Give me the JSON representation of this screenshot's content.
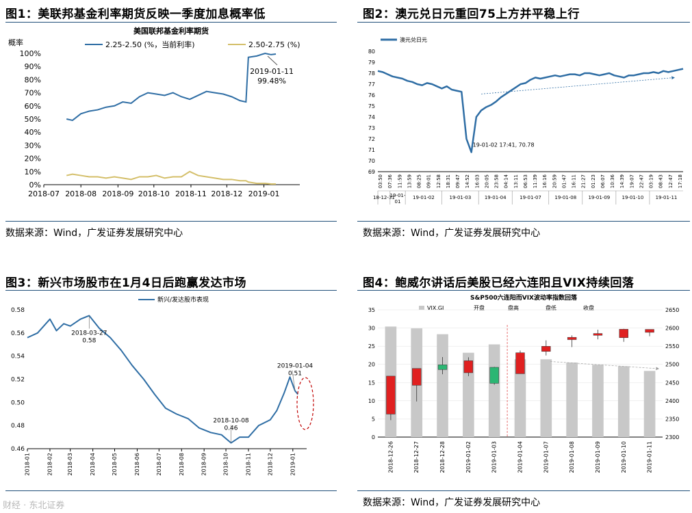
{
  "panels": {
    "p1": {
      "title": "图1：美联邦基金利率期货反映一季度加息概率低",
      "source": "数据来源：Wind，广发证券发展研究中心"
    },
    "p2": {
      "title": "图2：澳元兑日元重回75上方并平稳上行",
      "source": "数据来源：Wind，广发证券发展研究中心"
    },
    "p3": {
      "title": "图3：新兴市场股市在1月4日后跑赢发达市场",
      "source": ""
    },
    "p4": {
      "title": "图4：鲍威尔讲话后美股已经六连阳且VIX持续回落",
      "source": "数据来源：Wind，广发证券发展研究中心"
    }
  },
  "watermark": "财经 · 东北证券",
  "chart_data": [
    {
      "id": "chart1",
      "type": "line",
      "title": "美国联邦基金利率期货",
      "ylabel": "概率",
      "ylim": [
        0,
        100
      ],
      "yticks": [
        "0%",
        "10%",
        "20%",
        "30%",
        "40%",
        "50%",
        "60%",
        "70%",
        "80%",
        "90%",
        "100%"
      ],
      "xticks": [
        "2018-07",
        "2018-08",
        "2018-09",
        "2018-10",
        "2018-11",
        "2018-12",
        "2019-01"
      ],
      "legend_position": "top",
      "series": [
        {
          "name": "2.25-2.50 (%，当前利率)",
          "color": "#2e6da4",
          "x": [
            "2018-07-20",
            "2018-07-25",
            "2018-08-01",
            "2018-08-08",
            "2018-08-15",
            "2018-08-22",
            "2018-08-29",
            "2018-09-05",
            "2018-09-12",
            "2018-09-19",
            "2018-09-26",
            "2018-10-03",
            "2018-10-10",
            "2018-10-17",
            "2018-10-24",
            "2018-10-31",
            "2018-11-07",
            "2018-11-14",
            "2018-11-21",
            "2018-11-28",
            "2018-12-05",
            "2018-12-12",
            "2018-12-17",
            "2018-12-19",
            "2018-12-26",
            "2019-01-02",
            "2019-01-07",
            "2019-01-11"
          ],
          "values": [
            50,
            49,
            54,
            56,
            57,
            59,
            60,
            63,
            62,
            67,
            70,
            69,
            68,
            70,
            67,
            65,
            68,
            71,
            70,
            69,
            67,
            64,
            63,
            97,
            98,
            100,
            99,
            99.48
          ]
        },
        {
          "name": "2.50-2.75 (%)",
          "color": "#d4bf6a",
          "x": [
            "2018-07-20",
            "2018-07-25",
            "2018-08-01",
            "2018-08-08",
            "2018-08-15",
            "2018-08-22",
            "2018-08-29",
            "2018-09-05",
            "2018-09-12",
            "2018-09-19",
            "2018-09-26",
            "2018-10-03",
            "2018-10-10",
            "2018-10-17",
            "2018-10-24",
            "2018-10-31",
            "2018-11-07",
            "2018-11-14",
            "2018-11-21",
            "2018-11-28",
            "2018-12-05",
            "2018-12-12",
            "2018-12-17",
            "2018-12-19",
            "2018-12-26",
            "2019-01-02",
            "2019-01-07",
            "2019-01-11"
          ],
          "values": [
            7,
            8,
            7,
            6,
            6,
            5,
            6,
            5,
            4,
            6,
            6,
            7,
            5,
            6,
            6,
            10,
            7,
            6,
            5,
            4,
            4,
            3,
            3,
            2,
            1,
            1,
            0.5,
            0.5
          ]
        }
      ],
      "annotations": [
        {
          "label": "2019-01-11",
          "value": "99.48%",
          "x": "2019-01-11",
          "y": 99.48
        }
      ]
    },
    {
      "id": "chart2",
      "type": "line",
      "series": [
        {
          "name": "澳元兑日元",
          "color": "#2e6da4",
          "values": [
            78.2,
            78.1,
            77.9,
            77.7,
            77.6,
            77.5,
            77.3,
            77.2,
            77.0,
            76.9,
            77.1,
            77.0,
            76.8,
            76.6,
            76.8,
            76.5,
            76.4,
            76.3,
            72.0,
            70.78,
            74.0,
            74.6,
            74.9,
            75.1,
            75.4,
            75.8,
            76.1,
            76.4,
            76.7,
            77.0,
            77.1,
            77.4,
            77.6,
            77.5,
            77.6,
            77.7,
            77.8,
            77.7,
            77.8,
            77.9,
            77.9,
            77.8,
            78.0,
            78.0,
            77.9,
            77.8,
            77.9,
            78.0,
            77.8,
            77.7,
            77.6,
            77.8,
            77.8,
            77.9,
            78.0,
            78.0,
            78.1,
            78.0,
            78.2,
            78.1,
            78.2,
            78.3,
            78.4
          ]
        }
      ],
      "ylim": [
        69,
        80
      ],
      "yticks": [
        "69",
        "70",
        "71",
        "72",
        "73",
        "74",
        "75",
        "76",
        "77",
        "78",
        "79",
        "80"
      ],
      "date_groups": [
        "18-12-31",
        "19-01-01",
        "19-01-02",
        "19-01-03",
        "19-01-04",
        "19-01-07",
        "19-01-08",
        "19-01-09",
        "19-01-10",
        "19-01-11"
      ],
      "time_labels": [
        "03:50",
        "07:36",
        "11:59",
        "13:59",
        "08:25",
        "09:01",
        "12:58",
        "18:31",
        "09:47",
        "14:52",
        "16:03",
        "20:05",
        "23:58",
        "04:14",
        "13:11",
        "06:53",
        "11:39",
        "16:16",
        "20:59",
        "01:47",
        "16:11",
        "21:27",
        "01:23",
        "06:07",
        "10:36",
        "14:39",
        "19:07",
        "22:47",
        "03:19",
        "08:43",
        "12:47",
        "17:18"
      ],
      "annotations": [
        {
          "label": "19-01-02 17:41, 70.78",
          "y": 70.78
        }
      ],
      "trend_arrow": true,
      "legend_position": "top-left"
    },
    {
      "id": "chart3",
      "type": "line",
      "series": [
        {
          "name": "新兴/发达股市表现",
          "color": "#2e6da4",
          "x": [
            "2018-01-01",
            "2018-01-15",
            "2018-02-01",
            "2018-02-10",
            "2018-02-20",
            "2018-03-01",
            "2018-03-15",
            "2018-03-27",
            "2018-04-10",
            "2018-04-25",
            "2018-05-10",
            "2018-05-25",
            "2018-06-10",
            "2018-06-25",
            "2018-07-10",
            "2018-07-25",
            "2018-08-10",
            "2018-08-25",
            "2018-09-10",
            "2018-09-25",
            "2018-10-08",
            "2018-10-20",
            "2018-11-01",
            "2018-11-15",
            "2018-12-01",
            "2018-12-10",
            "2018-12-20",
            "2018-12-28",
            "2019-01-04",
            "2019-01-08"
          ],
          "values": [
            0.556,
            0.56,
            0.572,
            0.562,
            0.568,
            0.566,
            0.572,
            0.575,
            0.564,
            0.556,
            0.545,
            0.532,
            0.52,
            0.507,
            0.495,
            0.49,
            0.486,
            0.478,
            0.474,
            0.472,
            0.465,
            0.47,
            0.47,
            0.48,
            0.485,
            0.493,
            0.508,
            0.522,
            0.51,
            0.507
          ]
        }
      ],
      "ylim": [
        0.46,
        0.58
      ],
      "yticks": [
        "0.46",
        "0.48",
        "0.50",
        "0.52",
        "0.54",
        "0.56",
        "0.58"
      ],
      "xticks": [
        "2018-01",
        "2018-02",
        "2018-03",
        "2018-04",
        "2018-05",
        "2018-06",
        "2018-07",
        "2018-08",
        "2018-09",
        "2018-10",
        "2018-11",
        "2018-12",
        "2019-01"
      ],
      "annotations": [
        {
          "label": "2018-03-27",
          "value": "0.58",
          "x": "2018-03-27",
          "y": 0.575
        },
        {
          "label": "2018-10-08",
          "value": "0.46",
          "x": "2018-10-08",
          "y": 0.465
        },
        {
          "label": "2019-01-04",
          "value": "0.51",
          "x": "2019-01-04",
          "y": 0.51
        }
      ],
      "legend_position": "top-left"
    },
    {
      "id": "chart4",
      "type": "bar",
      "title": "S&P500六连阳而VIX波动率指数回落",
      "categories": [
        "2018-12-26",
        "2018-12-27",
        "2018-12-28",
        "2019-01-02",
        "2019-01-03",
        "2019-01-04",
        "2019-01-07",
        "2019-01-08",
        "2019-01-09",
        "2019-01-10",
        "2019-01-11"
      ],
      "legend": [
        "VIX.GI",
        "开盘",
        "盘高",
        "盘低",
        "收盘"
      ],
      "vix": {
        "name": "VIX.GI",
        "color": "#c8c8c8",
        "values": [
          30.4,
          29.9,
          28.3,
          23.2,
          25.5,
          21.4,
          21.4,
          20.5,
          19.9,
          19.5,
          18.2
        ]
      },
      "ylim_left": [
        0,
        35
      ],
      "ylim_right": [
        2300,
        2650
      ],
      "yticks_left": [
        "0",
        "5",
        "10",
        "15",
        "20",
        "25",
        "30",
        "35"
      ],
      "yticks_right": [
        "2300",
        "2350",
        "2400",
        "2450",
        "2500",
        "2550",
        "2600",
        "2650"
      ],
      "candles": [
        {
          "open": 2363.12,
          "high": 2467.76,
          "low": 2346.58,
          "close": 2467.7,
          "color": "#e02020"
        },
        {
          "open": 2442.5,
          "high": 2489.1,
          "low": 2397.94,
          "close": 2488.83,
          "color": "#e02020"
        },
        {
          "open": 2498.77,
          "high": 2520.27,
          "low": 2472.89,
          "close": 2485.74,
          "color": "#2bb673"
        },
        {
          "open": 2476.96,
          "high": 2519.49,
          "low": 2467.47,
          "close": 2510.03,
          "color": "#e02020"
        },
        {
          "open": 2491.92,
          "high": 2493.14,
          "low": 2443.96,
          "close": 2447.89,
          "color": "#2bb673"
        },
        {
          "open": 2474.33,
          "high": 2538.07,
          "low": 2474.33,
          "close": 2531.94,
          "color": "#e02020"
        },
        {
          "open": 2535.61,
          "high": 2566.16,
          "low": 2524.56,
          "close": 2549.69,
          "color": "#e02020"
        },
        {
          "open": 2568.11,
          "high": 2579.82,
          "low": 2547.56,
          "close": 2574.41,
          "color": "#e02020"
        },
        {
          "open": 2580.0,
          "high": 2595.32,
          "low": 2568.89,
          "close": 2584.96,
          "color": "#e02020"
        },
        {
          "open": 2573.51,
          "high": 2597.82,
          "low": 2562.02,
          "close": 2596.64,
          "color": "#e02020"
        },
        {
          "open": 2588.11,
          "high": 2596.27,
          "low": 2577.4,
          "close": 2596.26,
          "color": "#e02020"
        }
      ],
      "trend_arrow": true
    }
  ]
}
